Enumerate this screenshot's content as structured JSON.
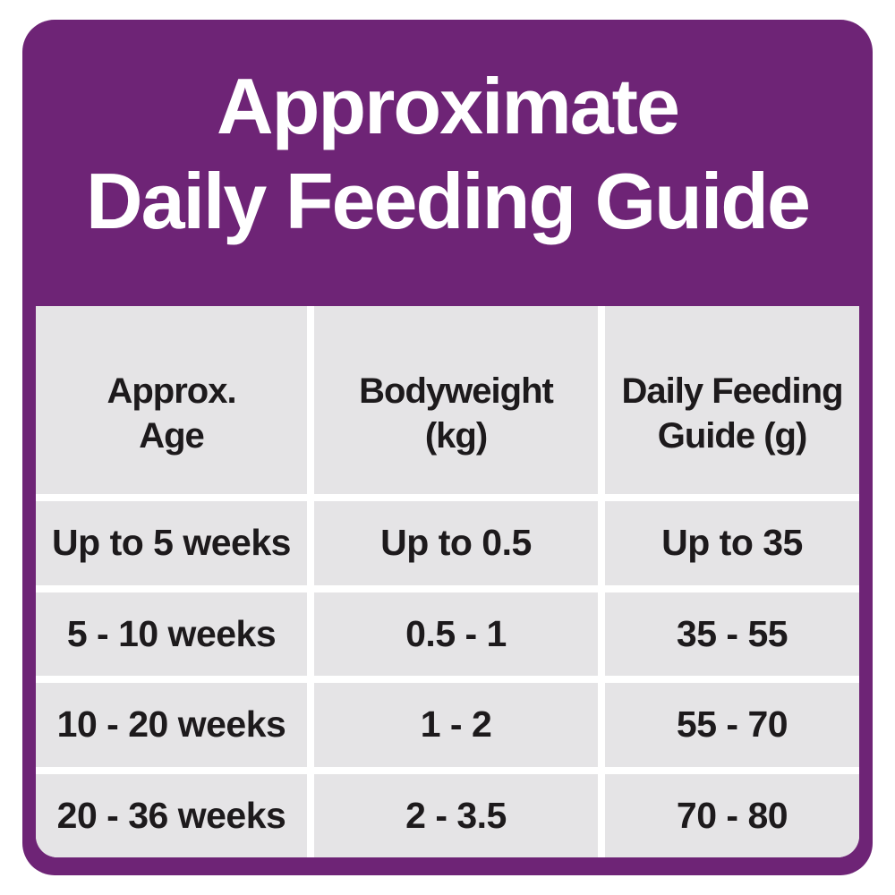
{
  "title": {
    "line1": "Approximate",
    "line2": "Daily Feeding Guide"
  },
  "table": {
    "headers": [
      {
        "line1": "Approx.",
        "line2": "Age"
      },
      {
        "line1": "Bodyweight",
        "line2": "(kg)"
      },
      {
        "line1": "Daily Feeding",
        "line2": "Guide (g)"
      }
    ],
    "rows": [
      [
        "Up to 5 weeks",
        "Up to 0.5",
        "Up to 35"
      ],
      [
        "5 - 10 weeks",
        "0.5 - 1",
        "35 - 55"
      ],
      [
        "10 - 20 weeks",
        "1 - 2",
        "55 - 70"
      ],
      [
        "20 - 36 weeks",
        "2 - 3.5",
        "70 - 80"
      ]
    ]
  },
  "colors": {
    "brand_purple": "#6e2476",
    "cell_gray": "#e5e4e6",
    "text_dark": "#1d1a1c",
    "gutter_white": "#ffffff",
    "title_white": "#ffffff"
  }
}
